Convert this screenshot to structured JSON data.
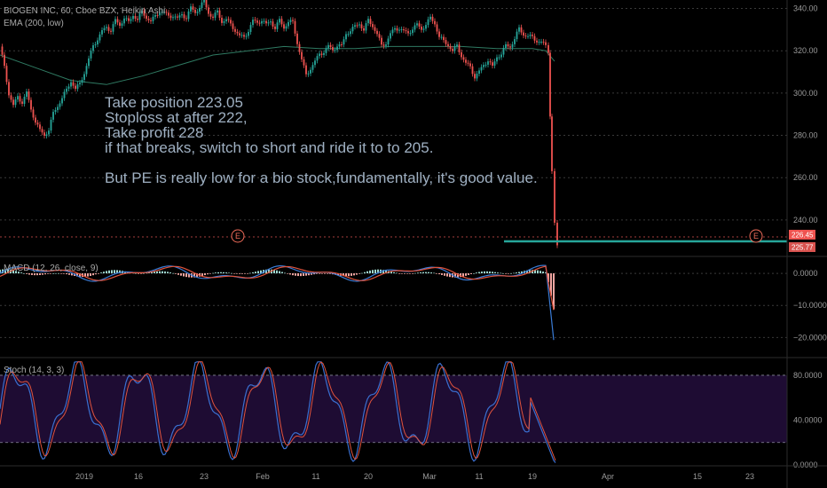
{
  "chart_data": [
    {
      "type": "candlestick",
      "title": "BIOGEN INC, 60, Cboe BZX, Heikin Ashi",
      "indicator": "EMA (200, low)",
      "ylim": [
        224,
        344
      ],
      "yticks": [
        240,
        260,
        280,
        300,
        320,
        340
      ],
      "ytick_labels": [
        "240.00",
        "260.00",
        "280.00",
        "300.00",
        "320.00",
        "340.00"
      ],
      "last_price_badges": [
        "226.45",
        "225.77"
      ],
      "earnings_markers": [
        "E",
        "E"
      ],
      "target_level": 222,
      "annotation": [
        "Take position 223.05",
        "Stoploss at after 222,",
        "Take profit 228",
        "if that breaks, switch to short and ride it to  to 205.",
        "",
        "But PE is really low for a bio stock,fundamentally, it's good value."
      ],
      "price_path": [
        [
          0,
          322
        ],
        [
          5,
          312
        ],
        [
          10,
          300
        ],
        [
          15,
          294
        ],
        [
          20,
          298
        ],
        [
          25,
          296
        ],
        [
          30,
          300
        ],
        [
          35,
          292
        ],
        [
          40,
          287
        ],
        [
          45,
          282
        ],
        [
          50,
          280
        ],
        [
          55,
          283
        ],
        [
          60,
          290
        ],
        [
          65,
          294
        ],
        [
          70,
          298
        ],
        [
          75,
          301
        ],
        [
          80,
          306
        ],
        [
          85,
          302
        ],
        [
          90,
          304
        ],
        [
          95,
          310
        ],
        [
          100,
          316
        ],
        [
          105,
          322
        ],
        [
          110,
          326
        ],
        [
          115,
          329
        ],
        [
          120,
          331
        ],
        [
          125,
          330
        ],
        [
          130,
          334
        ],
        [
          135,
          332
        ],
        [
          140,
          336
        ],
        [
          145,
          333
        ],
        [
          150,
          337
        ],
        [
          155,
          335
        ],
        [
          160,
          338
        ],
        [
          165,
          336
        ],
        [
          170,
          334
        ],
        [
          175,
          336
        ],
        [
          180,
          339
        ],
        [
          185,
          338
        ],
        [
          190,
          336
        ],
        [
          195,
          337
        ],
        [
          200,
          335
        ],
        [
          205,
          337
        ],
        [
          210,
          336
        ],
        [
          215,
          340
        ],
        [
          220,
          338
        ],
        [
          225,
          341
        ],
        [
          230,
          343
        ],
        [
          235,
          338
        ],
        [
          240,
          336
        ],
        [
          245,
          338
        ],
        [
          250,
          334
        ],
        [
          255,
          335
        ],
        [
          260,
          332
        ],
        [
          265,
          330
        ],
        [
          270,
          327
        ],
        [
          275,
          326
        ],
        [
          280,
          330
        ],
        [
          285,
          334
        ],
        [
          290,
          333
        ],
        [
          295,
          335
        ],
        [
          300,
          332
        ],
        [
          305,
          334
        ],
        [
          310,
          331
        ],
        [
          315,
          334
        ],
        [
          320,
          331
        ],
        [
          325,
          334
        ],
        [
          330,
          333
        ],
        [
          335,
          324
        ],
        [
          340,
          316
        ],
        [
          345,
          308
        ],
        [
          350,
          312
        ],
        [
          355,
          315
        ],
        [
          360,
          318
        ],
        [
          365,
          320
        ],
        [
          370,
          322
        ],
        [
          375,
          320
        ],
        [
          380,
          323
        ],
        [
          385,
          322
        ],
        [
          390,
          328
        ],
        [
          395,
          330
        ],
        [
          400,
          331
        ],
        [
          405,
          333
        ],
        [
          410,
          330
        ],
        [
          415,
          334
        ],
        [
          420,
          332
        ],
        [
          425,
          328
        ],
        [
          430,
          322
        ],
        [
          435,
          324
        ],
        [
          440,
          328
        ],
        [
          445,
          330
        ],
        [
          450,
          331
        ],
        [
          455,
          329
        ],
        [
          460,
          328
        ],
        [
          465,
          331
        ],
        [
          470,
          332
        ],
        [
          475,
          330
        ],
        [
          480,
          333
        ],
        [
          485,
          335
        ],
        [
          490,
          333
        ],
        [
          495,
          327
        ],
        [
          500,
          324
        ],
        [
          505,
          323
        ],
        [
          510,
          320
        ],
        [
          515,
          322
        ],
        [
          520,
          318
        ],
        [
          525,
          314
        ],
        [
          530,
          312
        ],
        [
          535,
          308
        ],
        [
          540,
          310
        ],
        [
          545,
          313
        ],
        [
          550,
          316
        ],
        [
          555,
          312
        ],
        [
          560,
          317
        ],
        [
          565,
          319
        ],
        [
          570,
          322
        ],
        [
          575,
          322
        ],
        [
          580,
          326
        ],
        [
          585,
          330
        ],
        [
          590,
          328
        ],
        [
          595,
          327
        ],
        [
          600,
          326
        ],
        [
          605,
          325
        ],
        [
          610,
          324
        ],
        [
          615,
          322
        ],
        [
          618,
          318
        ],
        [
          620,
          290
        ],
        [
          622,
          262
        ],
        [
          625,
          238
        ],
        [
          628,
          228
        ]
      ],
      "ema_path": [
        [
          0,
          318
        ],
        [
          40,
          312
        ],
        [
          80,
          306
        ],
        [
          120,
          304
        ],
        [
          160,
          308
        ],
        [
          200,
          313
        ],
        [
          240,
          318
        ],
        [
          280,
          320
        ],
        [
          320,
          322
        ],
        [
          360,
          321
        ],
        [
          400,
          321
        ],
        [
          440,
          322
        ],
        [
          480,
          322
        ],
        [
          520,
          322
        ],
        [
          560,
          321
        ],
        [
          600,
          321
        ],
        [
          615,
          320
        ],
        [
          625,
          315
        ]
      ],
      "x_tick_labels": [
        "2019",
        "16",
        "23",
        "Feb",
        "11",
        "20",
        "Mar",
        "11",
        "19",
        "Apr",
        "15",
        "23"
      ],
      "x_tick_positions": [
        95,
        156,
        230,
        296,
        356,
        415,
        484,
        540,
        600,
        685,
        786,
        845
      ]
    },
    {
      "type": "macd",
      "title": "MACD (12, 26, close, 9)",
      "ylim": [
        -26,
        5
      ],
      "yticks": [
        0,
        -10,
        -20
      ],
      "ytick_labels": [
        "0.0000",
        "−10.0000",
        "−20.0000"
      ]
    },
    {
      "type": "stochastic",
      "title": "Stoch (14, 3, 3)",
      "ylim": [
        0,
        95
      ],
      "yticks": [
        0,
        40,
        80
      ],
      "ytick_labels": [
        "0.0000",
        "40.0000",
        "80.0000"
      ],
      "band": [
        20,
        80
      ]
    }
  ]
}
